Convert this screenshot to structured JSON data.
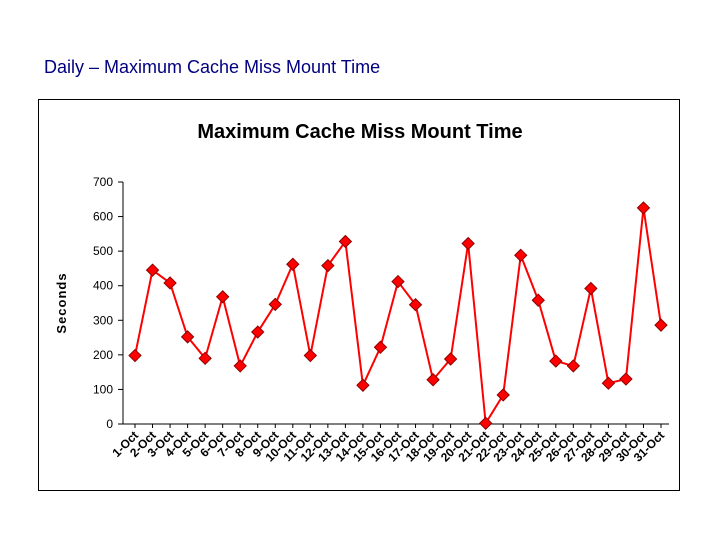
{
  "page": {
    "title": "Daily – Maximum Cache Miss Mount Time"
  },
  "colors": {
    "series": "#ff0000",
    "marker_fill": "#ff0000",
    "marker_stroke": "#8b0000",
    "title_text": "#000080",
    "axis": "#000000",
    "frame": "#000000"
  },
  "chart_data": {
    "type": "line",
    "title": "Maximum Cache Miss Mount Time",
    "xlabel": "",
    "ylabel": "Seconds",
    "ylim": [
      0,
      700
    ],
    "yticks": [
      0,
      100,
      200,
      300,
      400,
      500,
      600,
      700
    ],
    "grid": false,
    "legend": "none",
    "marker": "diamond",
    "categories": [
      "1-Oct",
      "2-Oct",
      "3-Oct",
      "4-Oct",
      "5-Oct",
      "6-Oct",
      "7-Oct",
      "8-Oct",
      "9-Oct",
      "10-Oct",
      "11-Oct",
      "12-Oct",
      "13-Oct",
      "14-Oct",
      "15-Oct",
      "16-Oct",
      "17-Oct",
      "18-Oct",
      "19-Oct",
      "20-Oct",
      "21-Oct",
      "22-Oct",
      "23-Oct",
      "24-Oct",
      "25-Oct",
      "26-Oct",
      "27-Oct",
      "28-Oct",
      "29-Oct",
      "30-Oct",
      "31-Oct"
    ],
    "values": [
      198,
      445,
      408,
      252,
      190,
      368,
      168,
      266,
      346,
      462,
      198,
      458,
      528,
      112,
      222,
      412,
      345,
      128,
      188,
      522,
      2,
      84,
      488,
      358,
      182,
      168,
      392,
      118,
      130,
      625,
      286
    ]
  }
}
